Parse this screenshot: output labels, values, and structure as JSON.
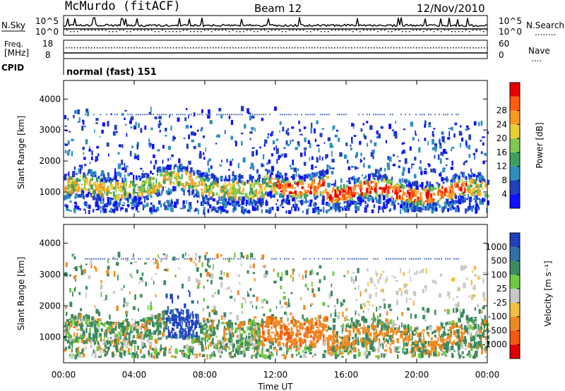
{
  "header": {
    "station": "McMurdo (fitACF)",
    "beam": "Beam 12",
    "date": "12/Nov/2010"
  },
  "strip_nsky": {
    "left_label": "N.Sky",
    "right_label": "N.Search",
    "right_label_mark": "........",
    "ticks_left": [
      "10^5",
      "10^0"
    ],
    "ticks_right": [
      "10^5",
      "10^0"
    ]
  },
  "strip_freq": {
    "left_label_line1": "Freq.",
    "left_label_line2": "[MHz]",
    "right_label": "Nave",
    "right_label_mark": "....",
    "ticks_left": [
      "18",
      "8"
    ],
    "ticks_right": [
      "60",
      "0"
    ]
  },
  "cpid": {
    "label": "CPID",
    "mode_text": "normal (fast) 151"
  },
  "chart_data": [
    {
      "type": "heatmap",
      "parameter": "Power",
      "ylabel": "Slant Range [km]",
      "xlabel": "Time UT",
      "x_ticks": [
        "00:00",
        "04:00",
        "08:00",
        "12:00",
        "16:00",
        "20:00",
        "00:00"
      ],
      "y_ticks": [
        1000,
        2000,
        3000,
        4000
      ],
      "ylim": [
        180,
        4600
      ],
      "colorbar": {
        "label": "Power [dB]",
        "ticks": [
          "4",
          "8",
          "12",
          "16",
          "20",
          "24",
          "28"
        ],
        "colors": [
          "#1010ff",
          "#2040c0",
          "#2e8fbf",
          "#3ca060",
          "#7ec850",
          "#e8d030",
          "#ff9a20",
          "#ff5a10",
          "#e80000"
        ]
      }
    },
    {
      "type": "heatmap",
      "parameter": "Velocity",
      "ylabel": "Slant Range [km]",
      "xlabel": "Time UT",
      "x_ticks": [
        "00:00",
        "04:00",
        "08:00",
        "12:00",
        "16:00",
        "20:00",
        "00:00"
      ],
      "y_ticks": [
        1000,
        2000,
        3000,
        4000
      ],
      "ylim": [
        180,
        4600
      ],
      "colorbar": {
        "label": "Velocity [m s⁻¹]",
        "ticks": [
          "1000",
          "500",
          "100",
          "25",
          "-25",
          "-100",
          "-500",
          "-1000"
        ],
        "colors": [
          "#2040c0",
          "#2f6fa8",
          "#3d8a5f",
          "#6fca40",
          "#c8c8c8",
          "#f0c040",
          "#f08a20",
          "#f25a10",
          "#e00000"
        ]
      }
    }
  ],
  "x_axis": {
    "label": "Time UT"
  }
}
